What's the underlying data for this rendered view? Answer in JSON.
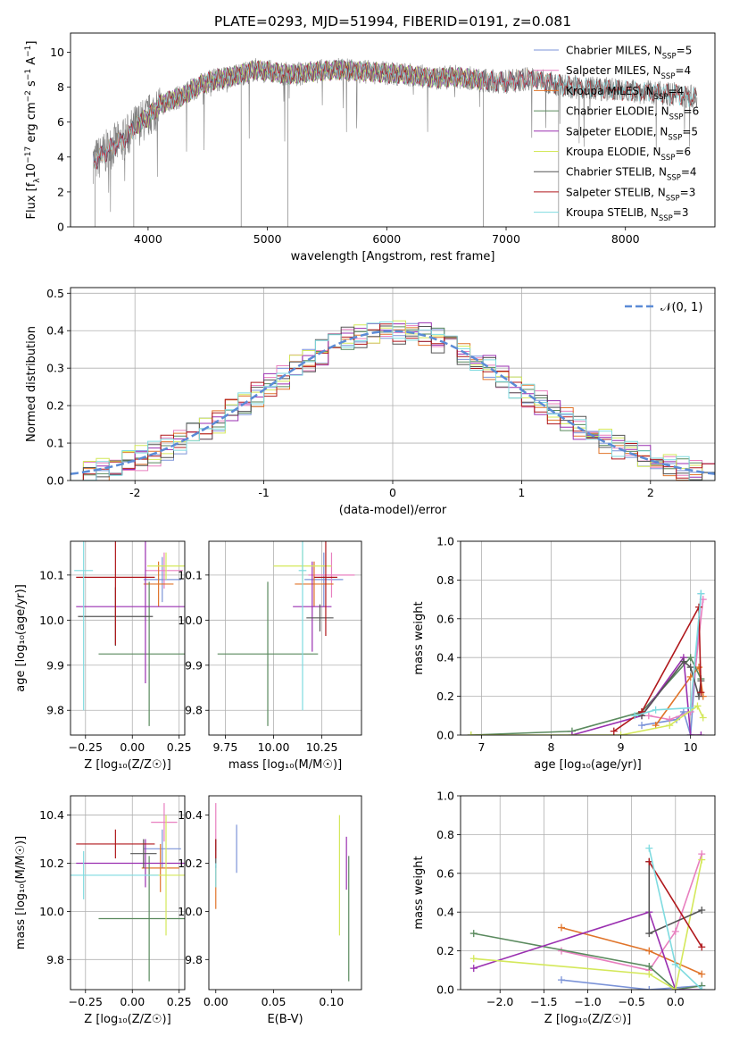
{
  "figure_title": "PLATE=0293, MJD=51994, FIBERID=0191, z=0.081",
  "colors": {
    "Chabrier MILES": "#7b93d8",
    "Salpeter MILES": "#e87fbf",
    "Kroupa MILES": "#e0742a",
    "Chabrier ELODIE": "#5a8a5e",
    "Salpeter ELODIE": "#9a2fb0",
    "Kroupa ELODIE": "#d4e85a",
    "Chabrier STELIB": "#555555",
    "Salpeter STELIB": "#b0181c",
    "Kroupa STELIB": "#7fdbe0",
    "data": "#808080",
    "normal": "#5b8bd6"
  },
  "chart_data": [
    {
      "id": "spectrum",
      "type": "line",
      "xlabel": "wavelength [Angstrom, rest frame]",
      "ylabel_parts": [
        "Flux [f",
        "λ",
        "10",
        "−17",
        " erg cm",
        "−2",
        " s",
        "−1",
        " A",
        "−1",
        "]"
      ],
      "xlim": [
        3350,
        8750
      ],
      "ylim": [
        0,
        11.1
      ],
      "xticks": [
        4000,
        5000,
        6000,
        7000,
        8000
      ],
      "yticks": [
        0,
        2,
        4,
        6,
        8,
        10
      ],
      "grid": false,
      "legend_position": "right",
      "legend": [
        {
          "name": "Chabrier MILES, N",
          "nssp": "5"
        },
        {
          "name": "Salpeter MILES, N",
          "nssp": "4"
        },
        {
          "name": "Kroupa MILES, N",
          "nssp": "4"
        },
        {
          "name": "Chabrier ELODIE, N",
          "nssp": "6"
        },
        {
          "name": "Salpeter ELODIE, N",
          "nssp": "5"
        },
        {
          "name": "Kroupa ELODIE, N",
          "nssp": "6"
        },
        {
          "name": "Chabrier STELIB, N",
          "nssp": "4"
        },
        {
          "name": "Salpeter STELIB, N",
          "nssp": "3"
        },
        {
          "name": "Kroupa STELIB, N",
          "nssp": "3"
        }
      ],
      "continuum_points": [
        [
          3500,
          3.6
        ],
        [
          3600,
          4.0
        ],
        [
          3700,
          4.6
        ],
        [
          3800,
          5.0
        ],
        [
          3900,
          5.8
        ],
        [
          4000,
          6.3
        ],
        [
          4100,
          7.0
        ],
        [
          4200,
          7.3
        ],
        [
          4300,
          7.5
        ],
        [
          4400,
          8.0
        ],
        [
          4500,
          8.3
        ],
        [
          4600,
          8.5
        ],
        [
          4700,
          8.6
        ],
        [
          4800,
          8.8
        ],
        [
          4900,
          9.0
        ],
        [
          5000,
          8.9
        ],
        [
          5200,
          8.7
        ],
        [
          5400,
          8.9
        ],
        [
          5600,
          9.0
        ],
        [
          5800,
          8.9
        ],
        [
          6000,
          8.8
        ],
        [
          6200,
          8.7
        ],
        [
          6400,
          8.5
        ],
        [
          6600,
          8.6
        ],
        [
          6800,
          8.4
        ],
        [
          7000,
          8.3
        ],
        [
          7200,
          8.5
        ],
        [
          7400,
          8.2
        ],
        [
          7600,
          8.0
        ],
        [
          7800,
          7.9
        ],
        [
          8000,
          7.8
        ],
        [
          8200,
          7.7
        ],
        [
          8400,
          7.6
        ],
        [
          8600,
          7.4
        ]
      ],
      "model_ranges": [
        {
          "name": "Chabrier MILES",
          "start": 3540,
          "end": 7400
        },
        {
          "name": "Salpeter MILES",
          "start": 3540,
          "end": 7400
        },
        {
          "name": "Kroupa MILES",
          "start": 3540,
          "end": 7400
        },
        {
          "name": "Chabrier ELODIE",
          "start": 3900,
          "end": 6800
        },
        {
          "name": "Salpeter ELODIE",
          "start": 3900,
          "end": 6800
        },
        {
          "name": "Kroupa ELODIE",
          "start": 3900,
          "end": 6800
        },
        {
          "name": "Chabrier STELIB",
          "start": 3540,
          "end": 8600
        },
        {
          "name": "Salpeter STELIB",
          "start": 3540,
          "end": 8600
        },
        {
          "name": "Kroupa STELIB",
          "start": 3540,
          "end": 8600
        }
      ]
    },
    {
      "id": "residuals",
      "type": "line",
      "xlabel": "(data-model)/error",
      "ylabel": "Normed distribution",
      "xlim": [
        -2.5,
        2.5
      ],
      "ylim": [
        0,
        0.515
      ],
      "xticks": [
        -2,
        -1,
        0,
        1,
        2
      ],
      "yticks": [
        0.0,
        0.1,
        0.2,
        0.3,
        0.4,
        0.5
      ],
      "grid": true,
      "legend_position": "top-right",
      "legend": [
        {
          "name": "𝒩(0, 1)"
        }
      ],
      "bin_width": 0.1,
      "bin_start": -2.5
    },
    {
      "id": "age-vs-Z",
      "type": "scatter",
      "xlabel": "Z [log₁₀(Z/Z☉)]",
      "ylabel": "age  [log₁₀(age/yr)]",
      "xlim": [
        -0.33,
        0.28
      ],
      "ylim": [
        9.745,
        10.175
      ],
      "xticks": [
        -0.25,
        0.0,
        0.25
      ],
      "xticklabels": [
        "−0.25",
        "0.00",
        "0.25"
      ],
      "yticks": [
        9.8,
        9.9,
        10.0,
        10.1
      ],
      "grid": true,
      "points": [
        {
          "name": "Chabrier MILES",
          "x": 0.16,
          "xerr": 0.1,
          "y": 10.09,
          "yerr": 0.05
        },
        {
          "name": "Salpeter MILES",
          "x": 0.17,
          "xerr": 0.1,
          "y": 10.11,
          "yerr": 0.04
        },
        {
          "name": "Kroupa MILES",
          "x": 0.14,
          "xerr": 0.08,
          "y": 10.08,
          "yerr": 0.05
        },
        {
          "name": "Chabrier ELODIE",
          "x": 0.09,
          "xerr": 0.27,
          "y": 9.925,
          "yerr": 0.16
        },
        {
          "name": "Salpeter ELODIE",
          "x": 0.07,
          "xerr": 0.37,
          "y": 10.03,
          "yerr": 0.17
        },
        {
          "name": "Kroupa ELODIE",
          "x": 0.18,
          "xerr": 0.1,
          "y": 10.12,
          "yerr": 0.03
        },
        {
          "name": "Chabrier STELIB",
          "x": -0.09,
          "xerr": 0.2,
          "y": 10.008,
          "yerr": 0.065
        },
        {
          "name": "Salpeter STELIB",
          "x": -0.09,
          "xerr": 0.21,
          "y": 10.095,
          "yerr": 0.15
        },
        {
          "name": "Kroupa STELIB",
          "x": -0.26,
          "xerr": 0.05,
          "y": 10.11,
          "yerr": 0.31
        }
      ]
    },
    {
      "id": "age-vs-mass",
      "type": "scatter",
      "xlabel": "mass [log₁₀(M/M☉)]",
      "ylabel": "",
      "xlim": [
        9.665,
        10.455
      ],
      "ylim": [
        9.745,
        10.175
      ],
      "xticks": [
        9.75,
        10.0,
        10.25
      ],
      "xticklabels": [
        "9.75",
        "10.00",
        "10.25"
      ],
      "yticks": [
        9.8,
        9.9,
        10.0,
        10.1
      ],
      "grid": true,
      "points": [
        {
          "name": "Chabrier MILES",
          "x": 10.26,
          "xerr": 0.1,
          "y": 10.09,
          "yerr": 0.06
        },
        {
          "name": "Salpeter MILES",
          "x": 10.3,
          "xerr": 0.12,
          "y": 10.1,
          "yerr": 0.05
        },
        {
          "name": "Kroupa MILES",
          "x": 10.21,
          "xerr": 0.1,
          "y": 10.08,
          "yerr": 0.05
        },
        {
          "name": "Chabrier ELODIE",
          "x": 9.97,
          "xerr": 0.26,
          "y": 9.925,
          "yerr": 0.16
        },
        {
          "name": "Salpeter ELODIE",
          "x": 10.2,
          "xerr": 0.1,
          "y": 10.03,
          "yerr": 0.1
        },
        {
          "name": "Kroupa ELODIE",
          "x": 10.15,
          "xerr": 0.15,
          "y": 10.12,
          "yerr": 0.035
        },
        {
          "name": "Chabrier STELIB",
          "x": 10.24,
          "xerr": 0.07,
          "y": 10.005,
          "yerr": 0.03
        },
        {
          "name": "Salpeter STELIB",
          "x": 10.27,
          "xerr": 0.06,
          "y": 10.095,
          "yerr": 0.13
        },
        {
          "name": "Kroupa STELIB",
          "x": 10.15,
          "xerr": 0.02,
          "y": 10.11,
          "yerr": 0.31
        }
      ]
    },
    {
      "id": "massweight-vs-age",
      "type": "line",
      "xlabel": "age  [log₁₀(age/yr)]",
      "ylabel": "mass weight",
      "xlim": [
        6.7,
        10.35
      ],
      "ylim": [
        0.0,
        1.0
      ],
      "xticks": [
        7,
        8,
        9,
        10
      ],
      "yticks": [
        0.0,
        0.2,
        0.4,
        0.6,
        0.8,
        1.0
      ],
      "grid": true,
      "series": [
        {
          "name": "Chabrier MILES",
          "x": [
            9.3,
            9.8,
            9.9,
            10.0,
            10.15
          ],
          "y": [
            0.05,
            0.08,
            0.12,
            0.0,
            0.73
          ]
        },
        {
          "name": "Salpeter MILES",
          "x": [
            9.4,
            9.7,
            10.0,
            10.18
          ],
          "y": [
            0.1,
            0.08,
            0.12,
            0.7
          ]
        },
        {
          "name": "Kroupa MILES",
          "x": [
            9.5,
            10.0,
            10.12,
            10.18
          ],
          "y": [
            0.05,
            0.3,
            0.35,
            0.2
          ]
        },
        {
          "name": "Chabrier ELODIE",
          "x": [
            6.85,
            8.3,
            9.3,
            10.0,
            10.15
          ],
          "y": [
            0.0,
            0.02,
            0.12,
            0.4,
            0.29
          ]
        },
        {
          "name": "Salpeter ELODIE",
          "x": [
            8.3,
            9.3,
            9.9,
            10.0,
            10.15
          ],
          "y": [
            0.0,
            0.1,
            0.4,
            0.0,
            0.0
          ]
        },
        {
          "name": "Kroupa ELODIE",
          "x": [
            6.85,
            9.0,
            9.7,
            10.1,
            10.18
          ],
          "y": [
            0.0,
            0.0,
            0.05,
            0.15,
            0.09
          ]
        },
        {
          "name": "Chabrier STELIB",
          "x": [
            9.3,
            9.9,
            10.0,
            10.12,
            10.15
          ],
          "y": [
            0.1,
            0.38,
            0.35,
            0.2,
            0.28
          ]
        },
        {
          "name": "Salpeter STELIB",
          "x": [
            8.9,
            9.3,
            10.12,
            10.15
          ],
          "y": [
            0.02,
            0.12,
            0.66,
            0.22
          ]
        },
        {
          "name": "Kroupa STELIB",
          "x": [
            9.2,
            9.5,
            10.0,
            10.15
          ],
          "y": [
            0.1,
            0.13,
            0.14,
            0.73
          ]
        }
      ]
    },
    {
      "id": "mass-vs-Z",
      "type": "scatter",
      "xlabel": "Z [log₁₀(Z/Z☉)]",
      "ylabel": "mass [log₁₀(M/M☉)]",
      "xlim": [
        -0.33,
        0.28
      ],
      "ylim": [
        9.675,
        10.48
      ],
      "xticks": [
        -0.25,
        0.0,
        0.25
      ],
      "xticklabels": [
        "−0.25",
        "0.00",
        "0.25"
      ],
      "yticks": [
        9.8,
        10.0,
        10.2,
        10.4
      ],
      "grid": true,
      "points": [
        {
          "name": "Chabrier MILES",
          "x": 0.16,
          "xerr": 0.1,
          "y": 10.26,
          "yerr": 0.08
        },
        {
          "name": "Salpeter MILES",
          "x": 0.17,
          "xerr": 0.07,
          "y": 10.37,
          "yerr": 0.08
        },
        {
          "name": "Kroupa MILES",
          "x": 0.15,
          "xerr": 0.1,
          "y": 10.18,
          "yerr": 0.1
        },
        {
          "name": "Chabrier ELODIE",
          "x": 0.09,
          "xerr": 0.27,
          "y": 9.97,
          "yerr": 0.26
        },
        {
          "name": "Salpeter ELODIE",
          "x": 0.07,
          "xerr": 0.37,
          "y": 10.2,
          "yerr": 0.1
        },
        {
          "name": "Kroupa ELODIE",
          "x": 0.18,
          "xerr": 0.1,
          "y": 10.15,
          "yerr": 0.25
        },
        {
          "name": "Chabrier STELIB",
          "x": 0.06,
          "xerr": 0.07,
          "y": 10.24,
          "yerr": 0.06
        },
        {
          "name": "Salpeter STELIB",
          "x": -0.09,
          "xerr": 0.21,
          "y": 10.28,
          "yerr": 0.06
        },
        {
          "name": "Kroupa STELIB",
          "x": -0.26,
          "xerr": 0.4,
          "y": 10.15,
          "yerr": 0.1
        }
      ]
    },
    {
      "id": "mass-vs-ebv",
      "type": "scatter",
      "xlabel": "E(B-V)",
      "ylabel": "",
      "xlim": [
        -0.006,
        0.126
      ],
      "ylim": [
        9.675,
        10.48
      ],
      "xticks": [
        0.0,
        0.05,
        0.1
      ],
      "xticklabels": [
        "0.00",
        "0.05",
        "0.10"
      ],
      "yticks": [
        9.8,
        10.0,
        10.2,
        10.4
      ],
      "grid": false,
      "points": [
        {
          "name": "Chabrier MILES",
          "x": 0.018,
          "xerr": 0.0,
          "y": 10.26,
          "yerr": 0.1
        },
        {
          "name": "Salpeter MILES",
          "x": 0.0,
          "xerr": 0.0,
          "y": 10.35,
          "yerr": 0.1
        },
        {
          "name": "Kroupa MILES",
          "x": 0.0,
          "xerr": 0.0,
          "y": 10.1,
          "yerr": 0.09
        },
        {
          "name": "Chabrier ELODIE",
          "x": 0.115,
          "xerr": 0.0,
          "y": 9.97,
          "yerr": 0.26
        },
        {
          "name": "Salpeter ELODIE",
          "x": 0.113,
          "xerr": 0.0,
          "y": 10.2,
          "yerr": 0.11
        },
        {
          "name": "Kroupa ELODIE",
          "x": 0.107,
          "xerr": 0.0,
          "y": 10.15,
          "yerr": 0.25
        },
        {
          "name": "Chabrier STELIB",
          "x": 0.0,
          "xerr": 0.0,
          "y": 10.24,
          "yerr": 0.06
        },
        {
          "name": "Salpeter STELIB",
          "x": 0.0,
          "xerr": 0.0,
          "y": 10.26,
          "yerr": 0.04
        },
        {
          "name": "Kroupa STELIB",
          "x": 0.0,
          "xerr": 0.0,
          "y": 10.15,
          "yerr": 0.05
        }
      ]
    },
    {
      "id": "massweight-vs-Z",
      "type": "line",
      "xlabel": "Z [log₁₀(Z/Z☉)]",
      "ylabel": "mass weight",
      "xlim": [
        -2.45,
        0.45
      ],
      "ylim": [
        0.0,
        1.0
      ],
      "xticks": [
        -2.0,
        -1.5,
        -1.0,
        -0.5,
        0.0
      ],
      "xticklabels": [
        "−2.0",
        "−1.5",
        "−1.0",
        "−0.5",
        "0.0"
      ],
      "yticks": [
        0.0,
        0.2,
        0.4,
        0.6,
        0.8,
        1.0
      ],
      "grid": true,
      "series": [
        {
          "name": "Chabrier MILES",
          "x": [
            -1.3,
            -0.3,
            0.3
          ],
          "y": [
            0.05,
            0.0,
            0.02
          ]
        },
        {
          "name": "Salpeter MILES",
          "x": [
            -1.3,
            -0.3,
            0.0,
            0.3
          ],
          "y": [
            0.2,
            0.1,
            0.3,
            0.7
          ]
        },
        {
          "name": "Kroupa MILES",
          "x": [
            -1.3,
            -0.3,
            0.3
          ],
          "y": [
            0.32,
            0.2,
            0.08
          ]
        },
        {
          "name": "Chabrier ELODIE",
          "x": [
            -2.3,
            -0.3,
            0.0,
            0.3
          ],
          "y": [
            0.29,
            0.12,
            0.0,
            0.02
          ]
        },
        {
          "name": "Salpeter ELODIE",
          "x": [
            -2.3,
            -0.3,
            0.0,
            0.3
          ],
          "y": [
            0.11,
            0.4,
            0.0,
            0.0
          ]
        },
        {
          "name": "Kroupa ELODIE",
          "x": [
            -2.3,
            -0.3,
            0.0,
            0.3
          ],
          "y": [
            0.16,
            0.08,
            0.0,
            0.67
          ]
        },
        {
          "name": "Chabrier STELIB",
          "x": [
            -0.3,
            -0.3,
            0.3
          ],
          "y": [
            0.66,
            0.29,
            0.41
          ]
        },
        {
          "name": "Salpeter STELIB",
          "x": [
            -0.3,
            0.3
          ],
          "y": [
            0.66,
            0.22
          ]
        },
        {
          "name": "Kroupa STELIB",
          "x": [
            -0.3,
            0.0,
            0.3
          ],
          "y": [
            0.73,
            0.13,
            0.0
          ]
        }
      ]
    }
  ]
}
